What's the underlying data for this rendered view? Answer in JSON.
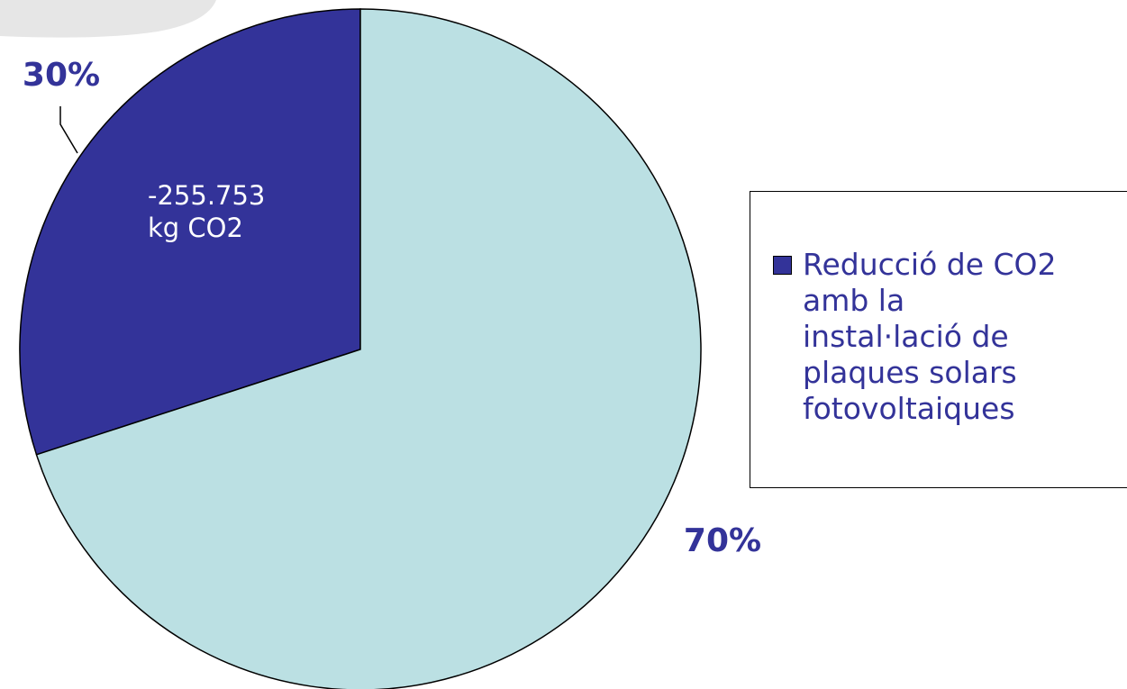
{
  "chart_data": {
    "type": "pie",
    "slices": [
      {
        "label": "Reducció de CO2\namb la\ninstal·lació de\nplaques solars\nfotovoltaiques",
        "value": 30,
        "percent_label": "30%",
        "data_label": [
          "-255.753",
          "kg CO2"
        ],
        "color": "#333399"
      },
      {
        "label": "",
        "value": 70,
        "percent_label": "70%",
        "color": "#bbe0e3"
      }
    ],
    "legend_position": "right",
    "label_color": "#333399",
    "outline_color": "#000000"
  }
}
